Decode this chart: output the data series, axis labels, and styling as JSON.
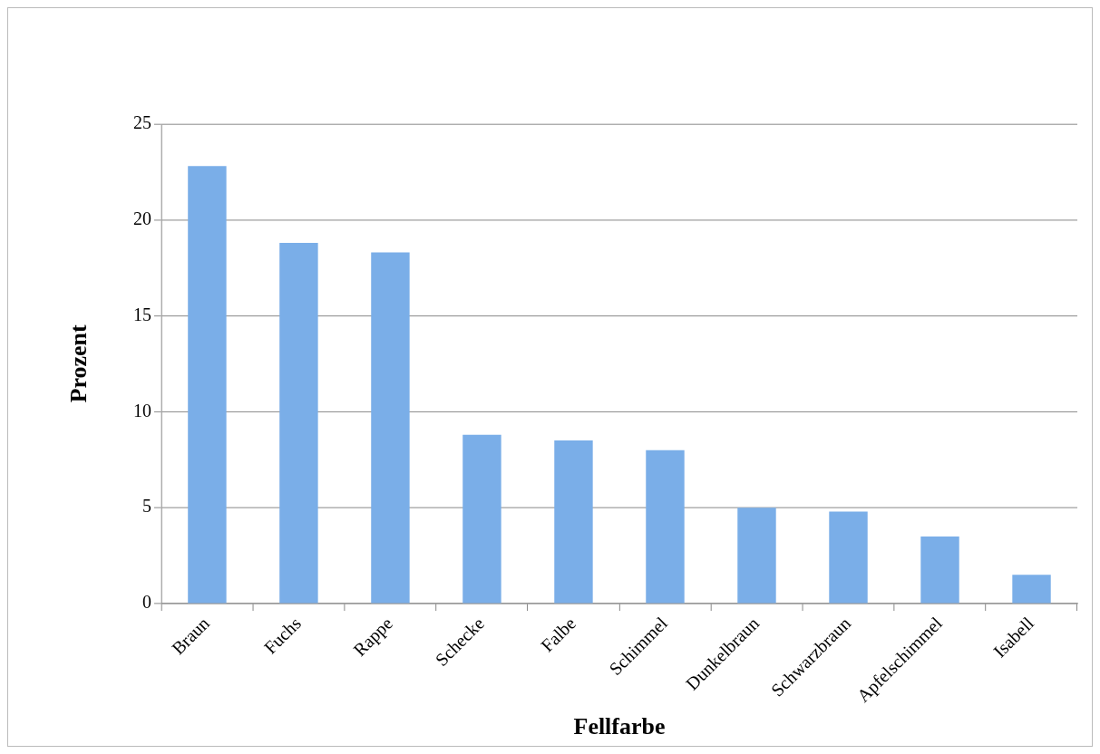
{
  "chart_data": {
    "type": "bar",
    "xlabel": "Fellfarbe",
    "ylabel": "Prozent",
    "categories": [
      "Braun",
      "Fuchs",
      "Rappe",
      "Schecke",
      "Falbe",
      "Schimmel",
      "Dunkelbraun",
      "Schwarzbraun",
      "Apfelschimmel",
      "Isabell"
    ],
    "values": [
      22.8,
      18.8,
      18.3,
      8.8,
      8.5,
      8.0,
      5.0,
      4.8,
      3.5,
      1.5
    ],
    "color": "#7aaee8",
    "ylim": [
      0,
      25
    ],
    "yticks": [
      0,
      5,
      10,
      15,
      20,
      25
    ],
    "grid": "y",
    "legend": false
  }
}
